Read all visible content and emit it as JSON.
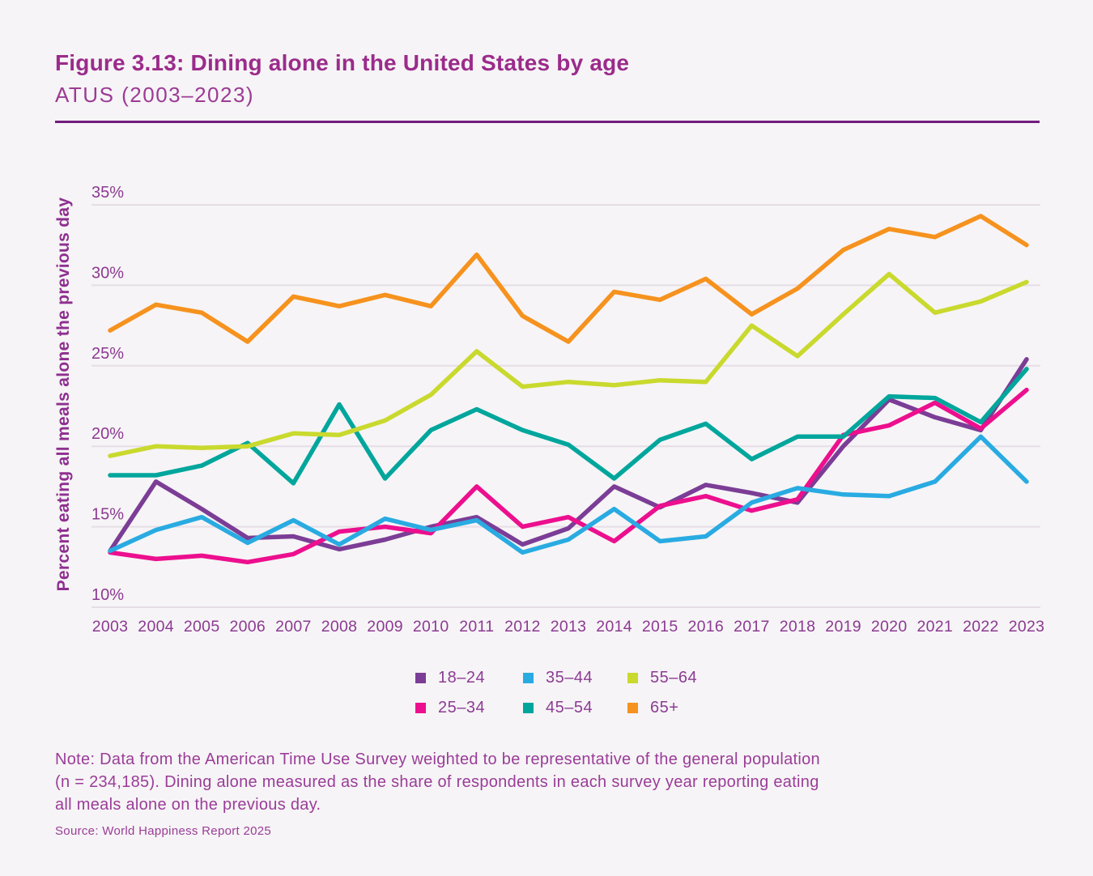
{
  "header": {
    "title": "Figure 3.13: Dining alone in the United States by age",
    "subtitle": "ATUS (2003–2023)"
  },
  "chart_data": {
    "type": "line",
    "title": "Dining alone in the United States by age, ATUS (2003–2023)",
    "xlabel": "",
    "ylabel": "Percent eating all meals alone the previous day",
    "x": [
      2003,
      2004,
      2005,
      2006,
      2007,
      2008,
      2009,
      2010,
      2011,
      2012,
      2013,
      2014,
      2015,
      2016,
      2017,
      2018,
      2019,
      2020,
      2021,
      2022,
      2023
    ],
    "ylim": [
      10,
      35
    ],
    "ytick_values": [
      35,
      30,
      25,
      20,
      15,
      10
    ],
    "ytick_labels": [
      "35%",
      "30%",
      "25%",
      "20%",
      "15%",
      "10%"
    ],
    "grid": true,
    "legend_position": "bottom",
    "series": [
      {
        "name": "18–24",
        "color": "#7b3d96",
        "values": [
          13.5,
          17.8,
          16.1,
          14.3,
          14.4,
          13.6,
          14.2,
          15.0,
          15.6,
          13.9,
          14.9,
          17.5,
          16.2,
          17.6,
          17.1,
          16.5,
          20.0,
          22.9,
          21.8,
          21.0,
          25.4
        ]
      },
      {
        "name": "25–34",
        "color": "#ec0f8e",
        "values": [
          13.4,
          13.0,
          13.2,
          12.8,
          13.3,
          14.7,
          15.0,
          14.6,
          17.5,
          15.0,
          15.6,
          14.1,
          16.3,
          16.9,
          16.0,
          16.7,
          20.7,
          21.3,
          22.7,
          21.1,
          23.5
        ]
      },
      {
        "name": "35–44",
        "color": "#29abe2",
        "values": [
          13.5,
          14.8,
          15.6,
          14.0,
          15.4,
          13.9,
          15.5,
          14.8,
          15.4,
          13.4,
          14.2,
          16.1,
          14.1,
          14.4,
          16.5,
          17.4,
          17.0,
          16.9,
          17.8,
          20.6,
          17.8
        ]
      },
      {
        "name": "45–54",
        "color": "#00a69c",
        "values": [
          18.2,
          18.2,
          18.8,
          20.2,
          17.7,
          22.6,
          18.0,
          21.0,
          22.3,
          21.0,
          20.1,
          18.0,
          20.4,
          21.4,
          19.2,
          20.6,
          20.6,
          23.1,
          23.0,
          21.5,
          24.8
        ]
      },
      {
        "name": "55–64",
        "color": "#c9d92e",
        "values": [
          19.4,
          20.0,
          19.9,
          20.0,
          20.8,
          20.7,
          21.6,
          23.2,
          25.9,
          23.7,
          24.0,
          23.8,
          24.1,
          24.0,
          27.5,
          25.6,
          28.2,
          30.7,
          28.3,
          29.0,
          30.2
        ]
      },
      {
        "name": "65+",
        "color": "#f6921e",
        "values": [
          27.2,
          28.8,
          28.3,
          26.5,
          29.3,
          28.7,
          29.4,
          28.7,
          31.9,
          28.1,
          26.5,
          29.6,
          29.1,
          30.4,
          28.2,
          29.8,
          32.2,
          33.5,
          33.0,
          34.3,
          32.5
        ]
      }
    ]
  },
  "legend": {
    "columns": [
      [
        "18–24",
        "25–34"
      ],
      [
        "35–44",
        "45–54"
      ],
      [
        "55–64",
        "65+"
      ]
    ]
  },
  "note": {
    "lines": [
      "Note: Data from the American Time Use Survey weighted to be representative of the general population",
      "(n = 234,185). Dining alone measured as the share of respondents in each survey year reporting eating",
      "all meals alone on the previous day."
    ]
  },
  "source": "Source: World Happiness Report 2025"
}
